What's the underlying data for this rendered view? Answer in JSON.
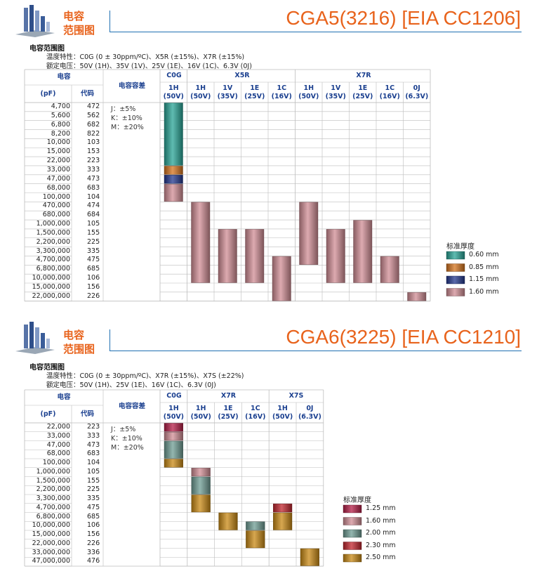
{
  "colors": {
    "accent": "#e8631c",
    "header_text": "#1a3f8f",
    "rule": "#1f6fb2",
    "grid": "#bdbdbd",
    "t060": "#2aa597",
    "t085": "#d5741e",
    "t115": "#23388f",
    "t160": "#d18d95",
    "t125": "#b51f48",
    "t200": "#6f9d94",
    "t230": "#c2262e",
    "t250": "#c98a15"
  },
  "sections": [
    {
      "logo_line1": "电容",
      "logo_line2": "范围图",
      "title": "CGA5(3216) [EIA CC1206]",
      "range_title": "电容范围图",
      "temp_char": "温度特性：C0G (0 ± 30ppm/ºC)、X5R (±15%)、X7R (±15%)",
      "rated_voltage": "额定电压：50V (1H)、35V (1V)、25V (1E)、16V (1C)、6.3V (0J)",
      "h_cap": "电容",
      "h_pf": "(pF)",
      "h_code": "代码",
      "h_tol": "电容容差",
      "tolerance": [
        "J：±5%",
        "K：±10%",
        "M：±20%"
      ],
      "groups": [
        "C0G",
        "X5R",
        "X7R"
      ],
      "columns": [
        {
          "l1": "1H",
          "l2": "(50V)"
        },
        {
          "l1": "1H",
          "l2": "(50V)"
        },
        {
          "l1": "1V",
          "l2": "(35V)"
        },
        {
          "l1": "1E",
          "l2": "(25V)"
        },
        {
          "l1": "1C",
          "l2": "(16V)"
        },
        {
          "l1": "1H",
          "l2": "(50V)"
        },
        {
          "l1": "1V",
          "l2": "(35V)"
        },
        {
          "l1": "1E",
          "l2": "(25V)"
        },
        {
          "l1": "1C",
          "l2": "(16V)"
        },
        {
          "l1": "0J",
          "l2": "(6.3V)"
        }
      ],
      "rows": [
        {
          "cap": "4,700",
          "code": "472"
        },
        {
          "cap": "5,600",
          "code": "562"
        },
        {
          "cap": "6,800",
          "code": "682"
        },
        {
          "cap": "8,200",
          "code": "822"
        },
        {
          "cap": "10,000",
          "code": "103"
        },
        {
          "cap": "15,000",
          "code": "153"
        },
        {
          "cap": "22,000",
          "code": "223"
        },
        {
          "cap": "33,000",
          "code": "333"
        },
        {
          "cap": "47,000",
          "code": "473"
        },
        {
          "cap": "68,000",
          "code": "683"
        },
        {
          "cap": "100,000",
          "code": "104"
        },
        {
          "cap": "470,000",
          "code": "474"
        },
        {
          "cap": "680,000",
          "code": "684"
        },
        {
          "cap": "1,000,000",
          "code": "105"
        },
        {
          "cap": "1,500,000",
          "code": "155"
        },
        {
          "cap": "2,200,000",
          "code": "225"
        },
        {
          "cap": "3,300,000",
          "code": "335"
        },
        {
          "cap": "4,700,000",
          "code": "475"
        },
        {
          "cap": "6,800,000",
          "code": "685"
        },
        {
          "cap": "10,000,000",
          "code": "106"
        },
        {
          "cap": "15,000,000",
          "code": "156"
        },
        {
          "cap": "22,000,000",
          "code": "226"
        }
      ],
      "bars": [
        {
          "col": 0,
          "from": 0,
          "to": 6,
          "thick": "0.60 mm"
        },
        {
          "col": 0,
          "from": 7,
          "to": 7,
          "thick": "0.85 mm"
        },
        {
          "col": 0,
          "from": 8,
          "to": 8,
          "thick": "1.15 mm"
        },
        {
          "col": 0,
          "from": 9,
          "to": 10,
          "thick": "1.60 mm"
        },
        {
          "col": 1,
          "from": 11,
          "to": 19,
          "thick": "1.60 mm"
        },
        {
          "col": 2,
          "from": 14,
          "to": 19,
          "thick": "1.60 mm"
        },
        {
          "col": 3,
          "from": 14,
          "to": 19,
          "thick": "1.60 mm"
        },
        {
          "col": 4,
          "from": 17,
          "to": 21,
          "thick": "1.60 mm"
        },
        {
          "col": 5,
          "from": 11,
          "to": 17,
          "thick": "1.60 mm"
        },
        {
          "col": 6,
          "from": 14,
          "to": 19,
          "thick": "1.60 mm"
        },
        {
          "col": 7,
          "from": 13,
          "to": 19,
          "thick": "1.60 mm"
        },
        {
          "col": 8,
          "from": 17,
          "to": 19,
          "thick": "1.60 mm"
        },
        {
          "col": 9,
          "from": 21,
          "to": 21,
          "thick": "1.60 mm"
        }
      ],
      "legend_title": "标准厚度",
      "legend": [
        {
          "label": "0.60 mm",
          "color": "#2aa597"
        },
        {
          "label": "0.85 mm",
          "color": "#d5741e"
        },
        {
          "label": "1.15 mm",
          "color": "#23388f"
        },
        {
          "label": "1.60 mm",
          "color": "#d18d95"
        }
      ]
    },
    {
      "logo_line1": "电容",
      "logo_line2": "范围图",
      "title": "CGA6(3225) [EIA CC1210]",
      "range_title": "电容范围图",
      "temp_char": "温度特性：C0G (0 ± 30ppm/ºC)、X7R (±15%)、X7S (±22%)",
      "rated_voltage": "额定电压：50V (1H)、25V (1E)、16V (1C)、6.3V (0J)",
      "h_cap": "电容",
      "h_pf": "(pF)",
      "h_code": "代码",
      "h_tol": "电容容差",
      "tolerance": [
        "J：±5%",
        "K：±10%",
        "M：±20%"
      ],
      "groups": [
        "C0G",
        "X7R",
        "X7S"
      ],
      "columns": [
        {
          "l1": "1H",
          "l2": "(50V)"
        },
        {
          "l1": "1H",
          "l2": "(50V)"
        },
        {
          "l1": "1E",
          "l2": "(25V)"
        },
        {
          "l1": "1C",
          "l2": "(16V)"
        },
        {
          "l1": "1H",
          "l2": "(50V)"
        },
        {
          "l1": "0J",
          "l2": "(6.3V)"
        }
      ],
      "rows": [
        {
          "cap": "22,000",
          "code": "223"
        },
        {
          "cap": "33,000",
          "code": "333"
        },
        {
          "cap": "47,000",
          "code": "473"
        },
        {
          "cap": "68,000",
          "code": "683"
        },
        {
          "cap": "100,000",
          "code": "104"
        },
        {
          "cap": "1,000,000",
          "code": "105"
        },
        {
          "cap": "1,500,000",
          "code": "155"
        },
        {
          "cap": "2,200,000",
          "code": "225"
        },
        {
          "cap": "3,300,000",
          "code": "335"
        },
        {
          "cap": "4,700,000",
          "code": "475"
        },
        {
          "cap": "6,800,000",
          "code": "685"
        },
        {
          "cap": "10,000,000",
          "code": "106"
        },
        {
          "cap": "15,000,000",
          "code": "156"
        },
        {
          "cap": "22,000,000",
          "code": "226"
        },
        {
          "cap": "33,000,000",
          "code": "336"
        },
        {
          "cap": "47,000,000",
          "code": "476"
        }
      ],
      "bars": [
        {
          "col": 0,
          "from": 0,
          "to": 0,
          "thick": "1.25 mm"
        },
        {
          "col": 0,
          "from": 1,
          "to": 1,
          "thick": "1.60 mm"
        },
        {
          "col": 0,
          "from": 2,
          "to": 3,
          "thick": "2.00 mm"
        },
        {
          "col": 0,
          "from": 4,
          "to": 4,
          "thick": "2.50 mm"
        },
        {
          "col": 1,
          "from": 5,
          "to": 5,
          "thick": "1.60 mm"
        },
        {
          "col": 1,
          "from": 6,
          "to": 7,
          "thick": "2.00 mm"
        },
        {
          "col": 1,
          "from": 8,
          "to": 9,
          "thick": "2.50 mm"
        },
        {
          "col": 2,
          "from": 10,
          "to": 11,
          "thick": "2.50 mm"
        },
        {
          "col": 3,
          "from": 11,
          "to": 11,
          "thick": "2.00 mm"
        },
        {
          "col": 3,
          "from": 12,
          "to": 13,
          "thick": "2.50 mm"
        },
        {
          "col": 4,
          "from": 9,
          "to": 9,
          "thick": "2.30 mm"
        },
        {
          "col": 4,
          "from": 10,
          "to": 11,
          "thick": "2.50 mm"
        },
        {
          "col": 5,
          "from": 14,
          "to": 15,
          "thick": "2.50 mm"
        }
      ],
      "legend_title": "标准厚度",
      "legend": [
        {
          "label": "1.25 mm",
          "color": "#b51f48"
        },
        {
          "label": "1.60 mm",
          "color": "#d18d95"
        },
        {
          "label": "2.00 mm",
          "color": "#6f9d94"
        },
        {
          "label": "2.30 mm",
          "color": "#c2262e"
        },
        {
          "label": "2.50 mm",
          "color": "#c98a15"
        }
      ]
    }
  ]
}
